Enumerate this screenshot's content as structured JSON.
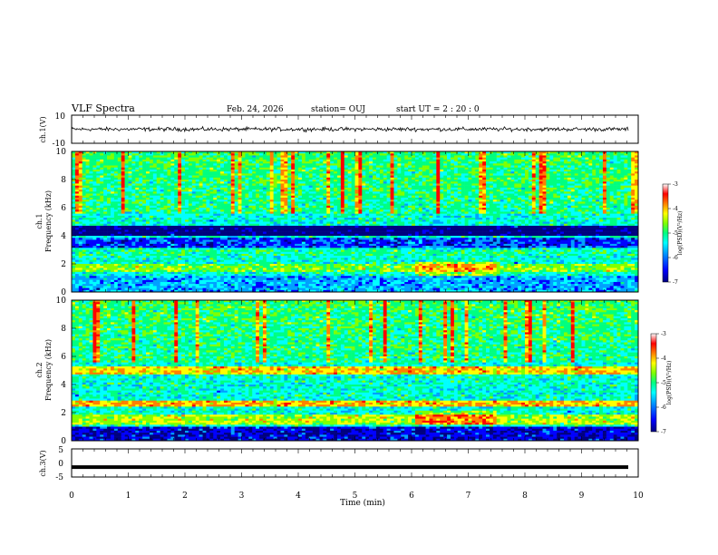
{
  "header": {
    "title": "VLF Spectra",
    "date": "Feb. 24, 2026",
    "station": "station= OUJ",
    "start": "start  UT =   2  : 20 : 0"
  },
  "colors": {
    "colormap": [
      "#00007f",
      "#0000ff",
      "#00a0ff",
      "#00ffff",
      "#00ff80",
      "#80ff00",
      "#ffff00",
      "#ff8000",
      "#ff0000",
      "#ffffff"
    ],
    "trace": "#000000"
  },
  "chart_data": [
    {
      "type": "line",
      "panel": "ch1-waveform",
      "ylabel": "ch.1(V)",
      "ylim": [
        -10,
        10
      ],
      "yticks": [
        "10",
        "-10"
      ],
      "series": [
        {
          "mean": 0,
          "range": [
            -1.5,
            1.5
          ]
        }
      ]
    },
    {
      "type": "heatmap",
      "panel": "ch1-spectrogram",
      "ylabel": "ch.1\nFrequency (kHz)",
      "ylim": [
        0,
        10
      ],
      "yticks": [
        "0",
        "2",
        "4",
        "6",
        "8",
        "10"
      ],
      "x": [
        0,
        10
      ],
      "colorbar": {
        "label": "log(PSD)(V²/Hz)",
        "range": [
          -7,
          -3
        ],
        "ticks": [
          "-3",
          "-4",
          "-5",
          "-6",
          "-7"
        ]
      },
      "bands": [
        {
          "f": [
            4.0,
            4.7
          ],
          "level": -6.9
        },
        {
          "f": [
            3.2,
            3.9
          ],
          "level": -6.2
        },
        {
          "f": [
            2.6,
            3.0
          ],
          "level": -5.1
        },
        {
          "f": [
            1.5,
            2.0
          ],
          "level": -4.6
        },
        {
          "f": [
            0.0,
            1.2
          ],
          "level": -5.8
        }
      ]
    },
    {
      "type": "heatmap",
      "panel": "ch2-spectrogram",
      "ylabel": "ch.2\nFrequency (kHz)",
      "ylim": [
        0,
        10
      ],
      "yticks": [
        "0",
        "2",
        "4",
        "6",
        "8",
        "10"
      ],
      "x": [
        0,
        10
      ],
      "colorbar": {
        "label": "log(PSD)(V²/Hz)",
        "range": [
          -7,
          -3
        ],
        "ticks": [
          "-3",
          "-4",
          "-5",
          "-6",
          "-7"
        ]
      },
      "bands": [
        {
          "f": [
            4.7,
            5.3
          ],
          "level": -4.0
        },
        {
          "f": [
            2.4,
            2.9
          ],
          "level": -3.9
        },
        {
          "f": [
            1.2,
            1.8
          ],
          "level": -4.4
        },
        {
          "f": [
            0.0,
            1.0
          ],
          "level": -6.5
        }
      ]
    },
    {
      "type": "line",
      "panel": "ch3-waveform",
      "ylabel": "ch.3(V)",
      "ylim": [
        -5,
        5
      ],
      "yticks": [
        "5",
        "0",
        "-5"
      ],
      "series": [
        {
          "mean": -1.5
        }
      ]
    }
  ],
  "xaxis": {
    "label": "Time  (min)",
    "range": [
      0,
      10
    ],
    "ticks": [
      "0",
      "1",
      "2",
      "3",
      "4",
      "5",
      "6",
      "7",
      "8",
      "9",
      "10"
    ]
  }
}
